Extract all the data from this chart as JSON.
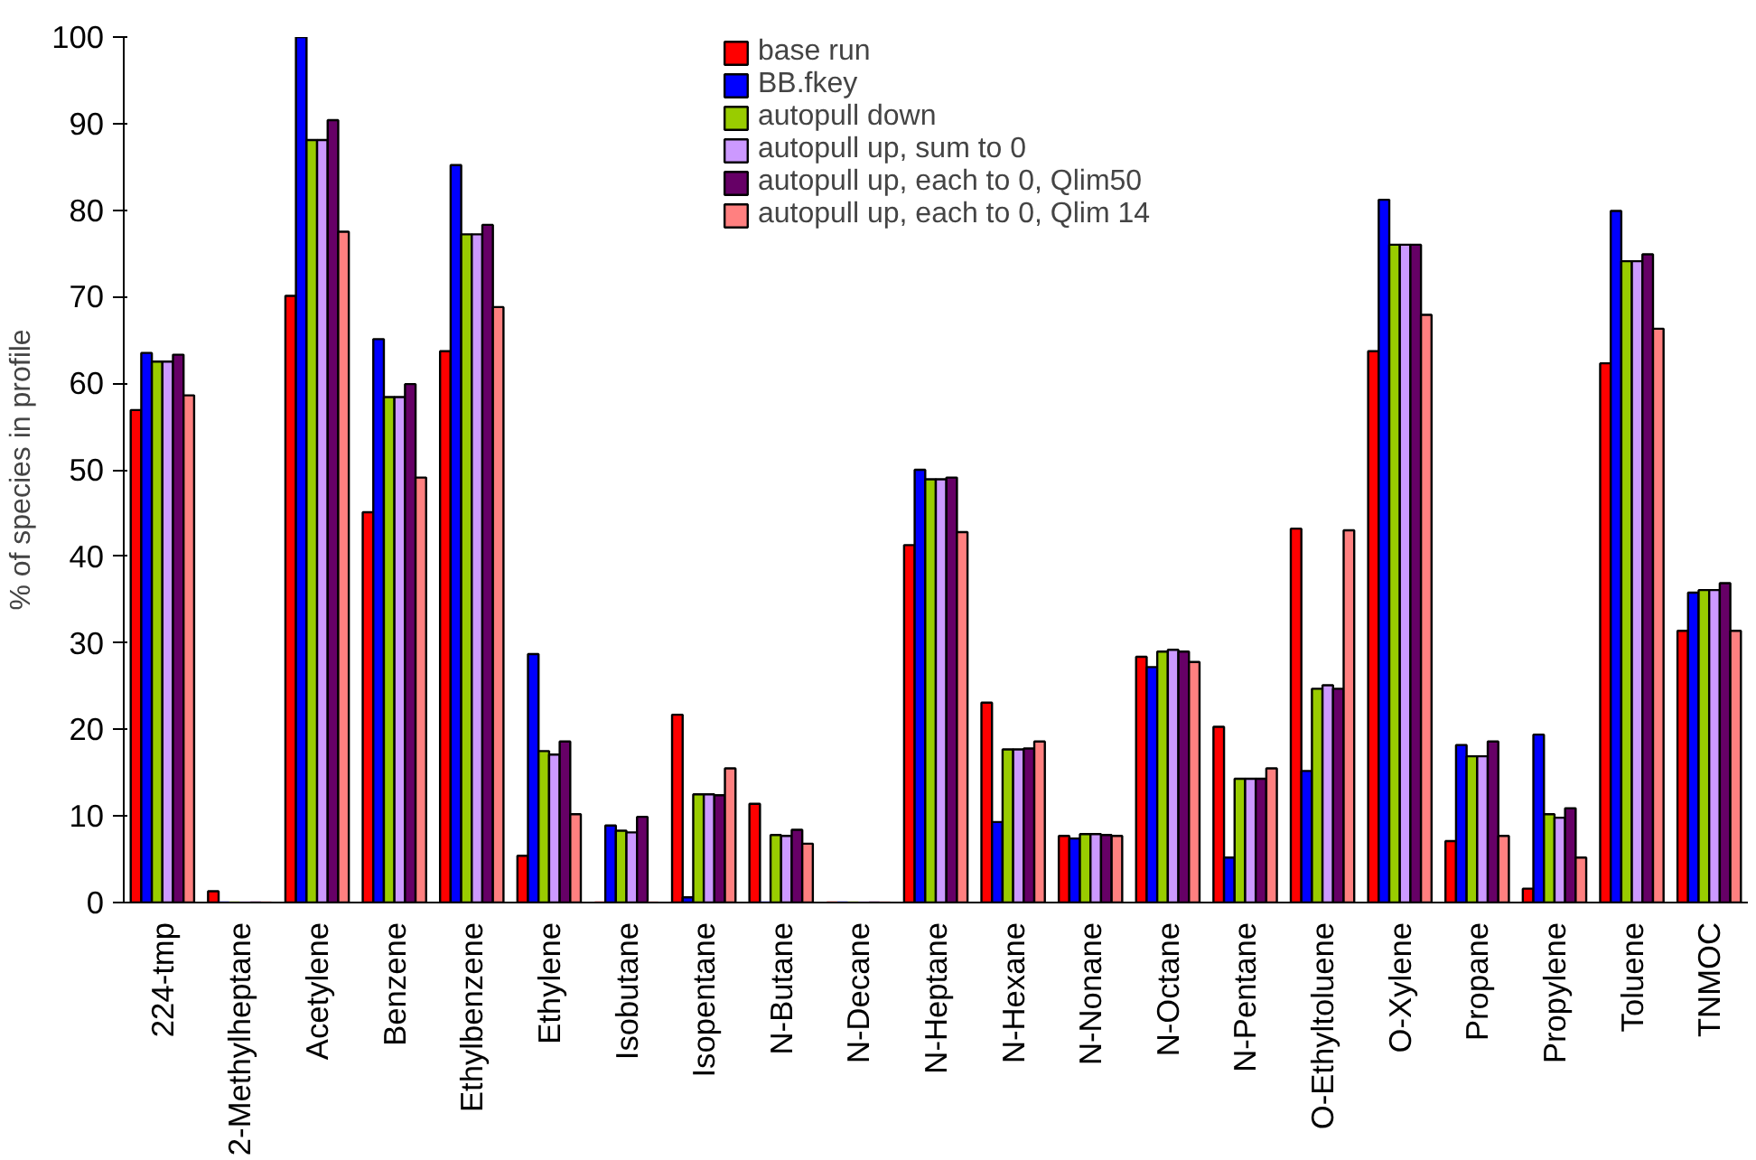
{
  "chart_data": {
    "type": "bar",
    "ylabel": "% of species in profile",
    "categories": [
      "224-tmp",
      "2-Methylheptane",
      "Acetylene",
      "Benzene",
      "Ethylbenzene",
      "Ethylene",
      "Isobutane",
      "Isopentane",
      "N-Butane",
      "N-Decane",
      "N-Heptane",
      "N-Hexane",
      "N-Nonane",
      "N-Octane",
      "N-Pentane",
      "O-Ethyltoluene",
      "O-Xylene",
      "Propane",
      "Propylene",
      "Toluene",
      "TNMOC"
    ],
    "series": [
      {
        "name": "base run",
        "color": "#ff0000",
        "values": [
          56.9,
          1.3,
          70.1,
          45.1,
          63.7,
          5.4,
          0,
          21.7,
          11.4,
          0,
          41.3,
          23.1,
          7.7,
          28.4,
          20.3,
          43.2,
          63.7,
          7.1,
          1.6,
          62.3,
          31.4
        ]
      },
      {
        "name": "BB.fkey",
        "color": "#0000ff",
        "values": [
          63.5,
          0,
          100,
          65.1,
          85.2,
          28.7,
          8.9,
          0.6,
          0,
          0,
          50.0,
          9.3,
          7.4,
          27.2,
          5.2,
          15.2,
          81.2,
          18.2,
          19.4,
          79.9,
          35.8
        ]
      },
      {
        "name": "autopull down",
        "color": "#99cc00",
        "values": [
          62.5,
          0,
          88.1,
          58.4,
          77.2,
          17.5,
          8.3,
          12.5,
          7.8,
          0,
          48.9,
          17.7,
          7.9,
          29.0,
          14.3,
          24.7,
          76.0,
          16.9,
          10.2,
          74.1,
          36.1
        ]
      },
      {
        "name": "autopull up, sum to 0",
        "color": "#cc99ff",
        "values": [
          62.5,
          0,
          88.1,
          58.4,
          77.2,
          17.1,
          8.1,
          12.5,
          7.7,
          0,
          48.9,
          17.7,
          7.9,
          29.2,
          14.3,
          25.1,
          76.0,
          16.9,
          9.8,
          74.1,
          36.1
        ]
      },
      {
        "name": "autopull up, each to 0, Qlim50",
        "color": "#660066",
        "values": [
          63.3,
          0,
          90.4,
          59.9,
          78.3,
          18.6,
          9.9,
          12.4,
          8.4,
          0,
          49.1,
          17.8,
          7.8,
          29.0,
          14.3,
          24.7,
          76.0,
          18.6,
          10.9,
          74.9,
          36.9
        ]
      },
      {
        "name": "autopull up, each to 0, Qlim 14",
        "color": "#ff8080",
        "values": [
          58.6,
          0,
          77.5,
          49.1,
          68.8,
          10.2,
          0,
          15.5,
          6.8,
          0,
          42.8,
          18.6,
          7.7,
          27.8,
          15.5,
          43.0,
          67.9,
          7.7,
          5.2,
          66.3,
          31.4
        ]
      }
    ],
    "ylim": [
      0,
      100
    ],
    "yticks": [
      0,
      10,
      20,
      30,
      40,
      50,
      60,
      70,
      80,
      90,
      100
    ],
    "grid": false,
    "legend": "top"
  }
}
